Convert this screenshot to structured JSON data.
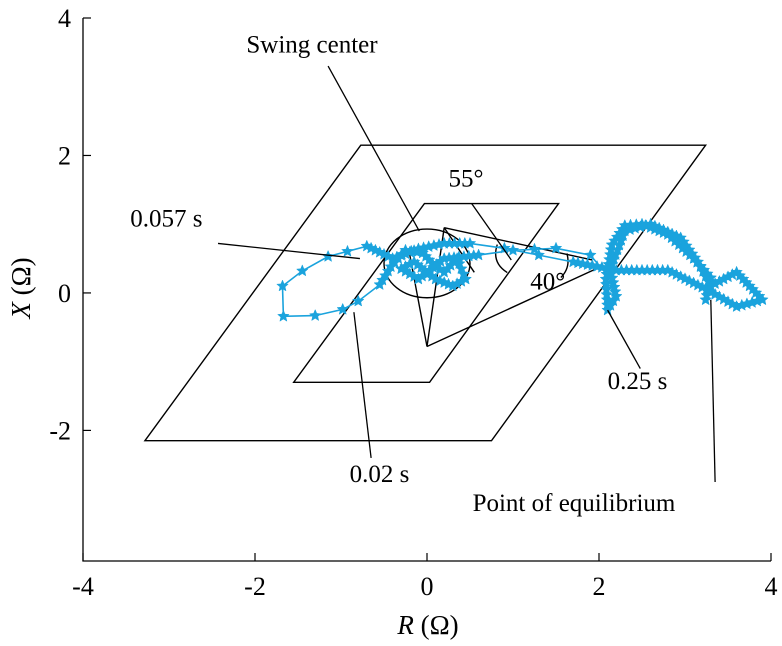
{
  "chart_data": {
    "type": "line",
    "title": "",
    "xlabel_var": "R",
    "xlabel_unit": " (Ω)",
    "ylabel_var": "X",
    "ylabel_unit": " (Ω)",
    "xlim": [
      -4,
      4
    ],
    "ylim": [
      -3.9,
      4
    ],
    "x_ticks": [
      -4,
      -2,
      0,
      2,
      4
    ],
    "x_tick_labels": [
      "-4",
      "-2",
      "0",
      "2",
      "4"
    ],
    "y_ticks": [
      -2,
      0,
      2,
      4
    ],
    "y_tick_labels": [
      "-2",
      "0",
      "2",
      "4"
    ],
    "grid": false,
    "series_color": "#1aa3dd",
    "relay_characteristics": {
      "outer_parallelogram": [
        [
          -3.28,
          -2.15
        ],
        [
          0.75,
          -2.15
        ],
        [
          3.24,
          2.15
        ],
        [
          -0.77,
          2.15
        ]
      ],
      "inner_parallelogram": [
        [
          -1.55,
          -1.3
        ],
        [
          0.03,
          -1.3
        ],
        [
          1.53,
          1.3
        ],
        [
          -0.03,
          1.3
        ]
      ],
      "circle": {
        "center": [
          0,
          0.43
        ],
        "radius": 0.5
      },
      "swing_wedge_apex": [
        0,
        -0.78
      ],
      "wedge_lines": [
        [
          [
            0,
            -0.78
          ],
          [
            -0.2,
            0.55
          ]
        ],
        [
          [
            0,
            -0.78
          ],
          [
            0.2,
            0.95
          ]
        ],
        [
          [
            0,
            -0.78
          ],
          [
            2.0,
            0.37
          ]
        ],
        [
          [
            0.2,
            0.95
          ],
          [
            1.92,
            0.48
          ]
        ],
        [
          [
            0.2,
            0.95
          ],
          [
            0.55,
            0.3
          ]
        ]
      ]
    },
    "series": [
      {
        "points": [
          [
            3.24,
            -0.1
          ],
          [
            3.3,
            0.22
          ],
          [
            3.1,
            0.5
          ],
          [
            2.8,
            0.85
          ],
          [
            2.5,
            1.0
          ],
          [
            2.3,
            0.98
          ],
          [
            2.15,
            0.7
          ],
          [
            2.08,
            0.2
          ],
          [
            2.1,
            -0.25
          ],
          [
            2.2,
            -0.05
          ],
          [
            2.13,
            0.35
          ],
          [
            2.3,
            0.9
          ],
          [
            2.6,
            1.0
          ],
          [
            2.95,
            0.8
          ],
          [
            3.15,
            0.45
          ],
          [
            3.3,
            0.1
          ],
          [
            3.6,
            0.3
          ],
          [
            3.9,
            -0.1
          ],
          [
            3.6,
            -0.2
          ],
          [
            3.25,
            0.05
          ],
          [
            2.8,
            0.33
          ],
          [
            2.2,
            0.33
          ],
          [
            1.7,
            0.45
          ],
          [
            1.3,
            0.55
          ],
          [
            0.9,
            0.65
          ],
          [
            0.5,
            0.72
          ],
          [
            0.2,
            0.72
          ],
          [
            -0.1,
            0.64
          ],
          [
            -0.4,
            0.5
          ],
          [
            -0.7,
            0.68
          ],
          [
            -1.15,
            0.53
          ],
          [
            -1.45,
            0.32
          ],
          [
            -1.68,
            0.1
          ],
          [
            -1.67,
            -0.34
          ],
          [
            -1.3,
            -0.33
          ],
          [
            -0.98,
            -0.24
          ],
          [
            -0.8,
            -0.12
          ],
          [
            -0.55,
            0.12
          ],
          [
            -0.42,
            0.38
          ],
          [
            -0.25,
            0.62
          ],
          [
            -0.05,
            0.58
          ],
          [
            0.1,
            0.38
          ],
          [
            0.2,
            0.3
          ],
          [
            0.35,
            0.5
          ],
          [
            0.45,
            0.2
          ],
          [
            0.3,
            0.1
          ],
          [
            0.1,
            0.2
          ],
          [
            -0.15,
            0.45
          ],
          [
            -0.3,
            0.35
          ],
          [
            -0.1,
            0.2
          ],
          [
            0.2,
            0.5
          ],
          [
            0.6,
            0.55
          ],
          [
            1.0,
            0.62
          ],
          [
            1.5,
            0.65
          ],
          [
            1.9,
            0.55
          ],
          [
            2.0,
            0.4
          ]
        ]
      }
    ],
    "annotations": [
      {
        "text": "Swing center",
        "point": [
          -0.09,
          0.9
        ],
        "label_anchor": [
          -2.1,
          3.5
        ],
        "leader_start": [
          -1.15,
          3.3
        ]
      },
      {
        "text": "55°",
        "point": [
          0.98,
          0.48
        ],
        "label_anchor": [
          0.25,
          1.55
        ],
        "leader_start": [
          0.52,
          1.3
        ]
      },
      {
        "text": "40°",
        "point": [
          1.62,
          0.45
        ],
        "label_anchor": [
          1.2,
          0.05
        ],
        "leader_start": null
      },
      {
        "text": "0.057 s",
        "point": [
          -0.78,
          0.5
        ],
        "label_anchor": [
          -3.45,
          0.97
        ],
        "leader_start": [
          -2.43,
          0.72
        ]
      },
      {
        "text": "0.02 s",
        "point": [
          -0.85,
          -0.28
        ],
        "label_anchor": [
          -0.9,
          -2.75
        ],
        "leader_start": [
          -0.65,
          -2.4
        ]
      },
      {
        "text": "0.25 s",
        "point": [
          2.1,
          -0.25
        ],
        "label_anchor": [
          2.1,
          -1.4
        ],
        "leader_start": [
          2.48,
          -1.1
        ]
      },
      {
        "text": "Point of equilibrium",
        "point": [
          3.3,
          -0.1
        ],
        "label_anchor": [
          0.53,
          -3.17
        ],
        "leader_start": [
          3.35,
          -2.75
        ]
      }
    ]
  }
}
